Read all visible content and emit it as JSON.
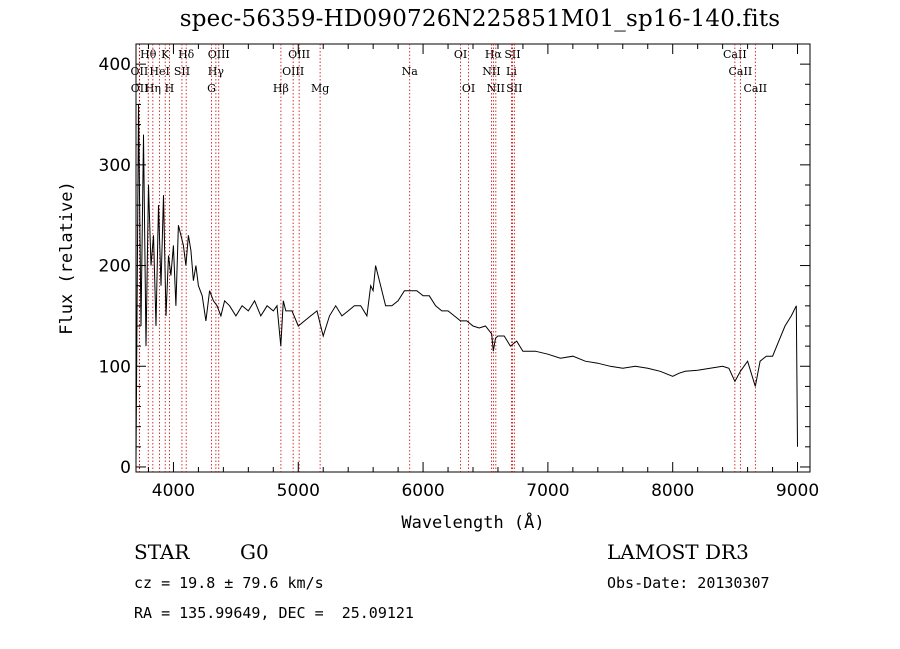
{
  "chart_data": {
    "type": "line",
    "title": "spec-56359-HD090726N225851M01_sp16-140.fits",
    "xlabel": "Wavelength (Å)",
    "ylabel": "Flux (relative)",
    "xlim": [
      3700,
      9100
    ],
    "ylim": [
      -5,
      420
    ],
    "xticks": [
      4000,
      5000,
      6000,
      7000,
      8000,
      9000
    ],
    "yticks": [
      0,
      100,
      200,
      300,
      400
    ],
    "series": [
      {
        "name": "spectrum",
        "x": [
          3700,
          3720,
          3740,
          3760,
          3780,
          3800,
          3820,
          3840,
          3860,
          3880,
          3900,
          3920,
          3940,
          3960,
          3980,
          4000,
          4020,
          4040,
          4060,
          4080,
          4100,
          4120,
          4140,
          4160,
          4180,
          4200,
          4230,
          4260,
          4290,
          4320,
          4350,
          4380,
          4410,
          4450,
          4500,
          4550,
          4600,
          4650,
          4700,
          4750,
          4800,
          4830,
          4860,
          4880,
          4900,
          4950,
          5000,
          5050,
          5100,
          5150,
          5180,
          5200,
          5250,
          5300,
          5350,
          5400,
          5450,
          5500,
          5550,
          5580,
          5600,
          5620,
          5650,
          5700,
          5750,
          5800,
          5850,
          5900,
          5950,
          6000,
          6050,
          6100,
          6150,
          6200,
          6250,
          6300,
          6350,
          6400,
          6450,
          6500,
          6550,
          6563,
          6580,
          6600,
          6650,
          6700,
          6750,
          6800,
          6900,
          7000,
          7100,
          7200,
          7300,
          7400,
          7500,
          7600,
          7700,
          7800,
          7900,
          8000,
          8050,
          8100,
          8200,
          8300,
          8400,
          8450,
          8498,
          8542,
          8600,
          8662,
          8700,
          8750,
          8800,
          8850,
          8900,
          8950,
          8990,
          9000
        ],
        "values": [
          5,
          360,
          140,
          330,
          120,
          280,
          200,
          230,
          140,
          260,
          180,
          270,
          150,
          210,
          190,
          220,
          160,
          240,
          230,
          220,
          200,
          230,
          215,
          185,
          200,
          180,
          170,
          145,
          175,
          165,
          160,
          150,
          165,
          160,
          150,
          160,
          155,
          165,
          150,
          160,
          155,
          160,
          120,
          165,
          155,
          155,
          140,
          145,
          150,
          155,
          140,
          130,
          150,
          160,
          150,
          155,
          160,
          160,
          150,
          180,
          175,
          200,
          185,
          160,
          160,
          165,
          175,
          175,
          175,
          170,
          170,
          160,
          155,
          155,
          150,
          145,
          145,
          140,
          138,
          140,
          132,
          115,
          128,
          130,
          130,
          120,
          125,
          115,
          115,
          112,
          108,
          110,
          105,
          103,
          100,
          98,
          100,
          98,
          95,
          90,
          93,
          95,
          96,
          98,
          100,
          98,
          85,
          95,
          105,
          80,
          105,
          110,
          110,
          125,
          140,
          150,
          160,
          20
        ]
      }
    ],
    "line_markers": [
      {
        "label": "Hθ",
        "x": 3798,
        "row": 1
      },
      {
        "label": "OII",
        "x": 3727,
        "row": 2
      },
      {
        "label": "OII",
        "x": 3729,
        "row": 3
      },
      {
        "label": "K",
        "x": 3934,
        "row": 1
      },
      {
        "label": "HeI",
        "x": 3889,
        "row": 2
      },
      {
        "label": "Hη",
        "x": 3835,
        "row": 3
      },
      {
        "label": "SII",
        "x": 4068,
        "row": 2
      },
      {
        "label": "H",
        "x": 3968,
        "row": 3
      },
      {
        "label": "Hδ",
        "x": 4102,
        "row": 1
      },
      {
        "label": "OIII",
        "x": 4363,
        "row": 1
      },
      {
        "label": "Hγ",
        "x": 4340,
        "row": 2
      },
      {
        "label": "G",
        "x": 4305,
        "row": 3
      },
      {
        "label": "Hβ",
        "x": 4861,
        "row": 3
      },
      {
        "label": "OIII",
        "x": 5007,
        "row": 1
      },
      {
        "label": "OIII",
        "x": 4959,
        "row": 2
      },
      {
        "label": "Mg",
        "x": 5175,
        "row": 3
      },
      {
        "label": "Na",
        "x": 5893,
        "row": 2
      },
      {
        "label": "OI",
        "x": 6300,
        "row": 1
      },
      {
        "label": "OI",
        "x": 6364,
        "row": 3
      },
      {
        "label": "Hα",
        "x": 6563,
        "row": 1
      },
      {
        "label": "SII",
        "x": 6716,
        "row": 1
      },
      {
        "label": "NII",
        "x": 6548,
        "row": 2
      },
      {
        "label": "Li",
        "x": 6708,
        "row": 2
      },
      {
        "label": "NII",
        "x": 6583,
        "row": 3
      },
      {
        "label": "SII",
        "x": 6731,
        "row": 3
      },
      {
        "label": "CaII",
        "x": 8498,
        "row": 1
      },
      {
        "label": "CaII",
        "x": 8542,
        "row": 2
      },
      {
        "label": "CaII",
        "x": 8662,
        "row": 3
      }
    ],
    "marker_color": "#cc0000"
  },
  "info": {
    "object_class": "STAR",
    "subclass": "G0",
    "survey": "LAMOST DR3",
    "redshift": "cz = 19.8 ± 79.6 km/s",
    "obs_date": "Obs-Date: 20130307",
    "coords": "RA = 135.99649, DEC =  25.09121"
  }
}
